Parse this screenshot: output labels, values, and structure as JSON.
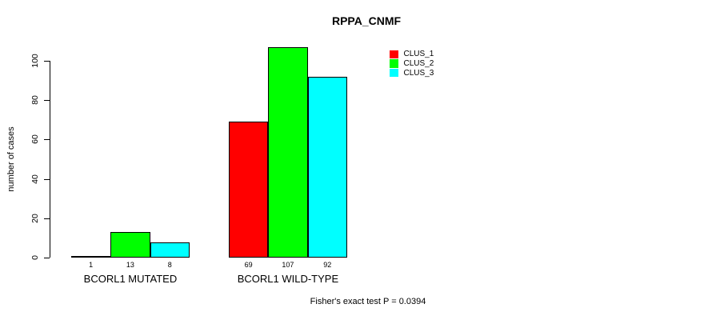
{
  "chart_data": {
    "type": "bar",
    "title": "RPPA_CNMF",
    "xlabel": "",
    "ylabel": "number of cases",
    "categories": [
      "BCORL1 MUTATED",
      "BCORL1 WILD-TYPE"
    ],
    "series": [
      {
        "name": "CLUS_1",
        "color": "#ff0000",
        "values": [
          1,
          69
        ]
      },
      {
        "name": "CLUS_2",
        "color": "#00ff00",
        "values": [
          13,
          107
        ]
      },
      {
        "name": "CLUS_3",
        "color": "#00ffff",
        "values": [
          8,
          92
        ]
      }
    ],
    "value_labels": [
      [
        "1",
        "13",
        "8"
      ],
      [
        "69",
        "107",
        "92"
      ]
    ],
    "yticks": [
      0,
      20,
      40,
      60,
      80,
      100
    ],
    "ylim": [
      0,
      107
    ],
    "grid": false,
    "legend_position": "top-right",
    "annotation": "Fisher's exact test P = 0.0394",
    "axis_color": "#000000",
    "background_color": "#ffffff"
  }
}
